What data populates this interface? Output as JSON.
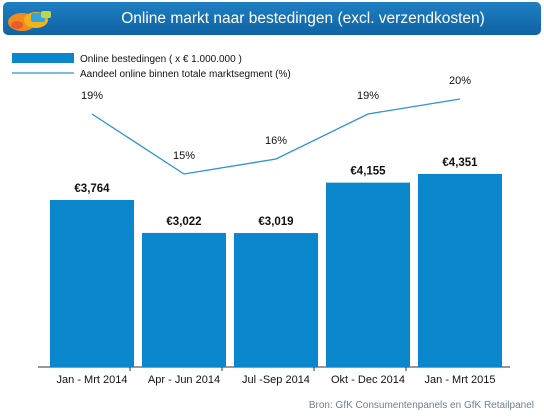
{
  "header": {
    "title": "Online markt naar bestedingen (excl. verzendkosten)"
  },
  "source": "Bron: GfK Consumentenpanels en GfK Retailpanel",
  "colors": {
    "bar": "#0a86cc",
    "line": "#2b94d2",
    "header": "#1878bc"
  },
  "chart_data": {
    "type": "bar",
    "title": "Online markt naar bestedingen (excl. verzendkosten)",
    "categories": [
      "Jan - Mrt 2014",
      "Apr - Jun 2014",
      "Jul  -Sep 2014",
      "Okt - Dec 2014",
      "Jan - Mrt 2015"
    ],
    "legend_position": "top-left",
    "series": [
      {
        "name": "Online bestedingen ( x € 1.000.000 )",
        "kind": "bar",
        "values": [
          3764,
          3022,
          3019,
          4155,
          4351
        ],
        "labels": [
          "€3,764",
          "€3,022",
          "€3,019",
          "€4,155",
          "€4,351"
        ]
      },
      {
        "name": "Aandeel online binnen totale marktsegment (%)",
        "kind": "line",
        "values": [
          19,
          15,
          16,
          19,
          20
        ],
        "labels": [
          "19%",
          "15%",
          "16%",
          "19%",
          "20%"
        ]
      }
    ],
    "grid": false
  }
}
